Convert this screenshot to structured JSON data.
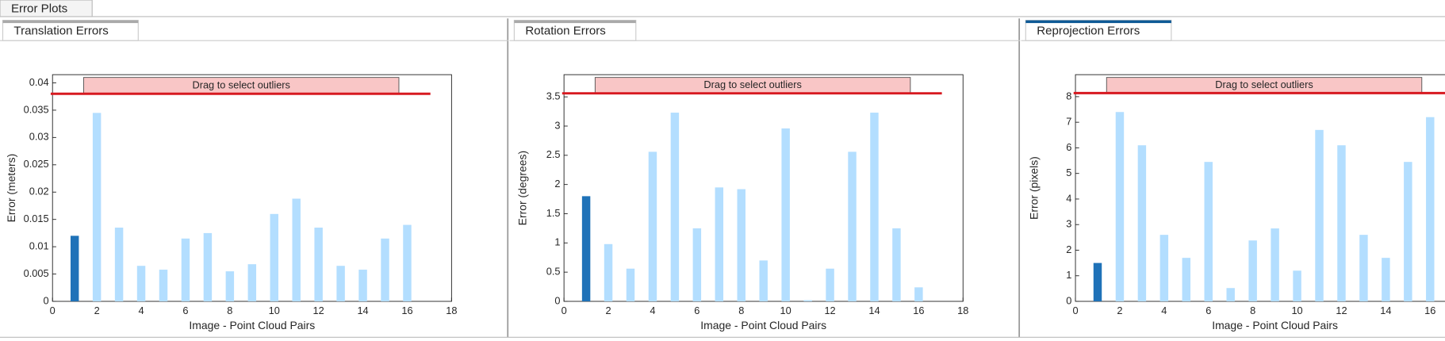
{
  "window_tab": "Error Plots",
  "chart_data": [
    {
      "type": "bar",
      "title": "Translation Errors",
      "ylabel": "Error (meters)",
      "xlabel": "Image - Point Cloud Pairs",
      "annotation": "Drag to select outliers",
      "threshold": 0.038,
      "x": [
        1,
        2,
        3,
        4,
        5,
        6,
        7,
        8,
        9,
        10,
        11,
        12,
        13,
        14,
        15,
        16
      ],
      "values": [
        0.012,
        0.0345,
        0.0135,
        0.0065,
        0.0058,
        0.0115,
        0.0125,
        0.0055,
        0.0068,
        0.016,
        0.0188,
        0.0135,
        0.0065,
        0.0058,
        0.0115,
        0.014
      ],
      "colors": [
        "#1f72b8",
        "#b3deff",
        "#b3deff",
        "#b3deff",
        "#b3deff",
        "#b3deff",
        "#b3deff",
        "#b3deff",
        "#b3deff",
        "#b3deff",
        "#b3deff",
        "#b3deff",
        "#b3deff",
        "#b3deff",
        "#b3deff",
        "#b3deff"
      ],
      "xlim": [
        0,
        18
      ],
      "xticks": [
        0,
        2,
        4,
        6,
        8,
        10,
        12,
        14,
        16,
        18
      ],
      "ylim": [
        0,
        0.0415
      ],
      "yticks": [
        0,
        0.005,
        0.01,
        0.015,
        0.02,
        0.025,
        0.03,
        0.035,
        0.04
      ]
    },
    {
      "type": "bar",
      "title": "Rotation Errors",
      "ylabel": "Error (degrees)",
      "xlabel": "Image - Point Cloud Pairs",
      "annotation": "Drag to select outliers",
      "threshold": 3.56,
      "x": [
        1,
        2,
        3,
        4,
        5,
        6,
        7,
        8,
        9,
        10,
        11,
        12,
        13,
        14,
        15,
        16
      ],
      "values": [
        1.8,
        0.98,
        0.56,
        2.56,
        3.23,
        1.25,
        1.95,
        1.92,
        0.7,
        2.96,
        0.02,
        0.56,
        2.56,
        3.23,
        1.25,
        0.24
      ],
      "colors": [
        "#1f72b8",
        "#b3deff",
        "#b3deff",
        "#b3deff",
        "#b3deff",
        "#b3deff",
        "#b3deff",
        "#b3deff",
        "#b3deff",
        "#b3deff",
        "#b3deff",
        "#b3deff",
        "#b3deff",
        "#b3deff",
        "#b3deff",
        "#b3deff"
      ],
      "xlim": [
        0,
        18
      ],
      "xticks": [
        0,
        2,
        4,
        6,
        8,
        10,
        12,
        14,
        16,
        18
      ],
      "ylim": [
        0,
        3.88
      ],
      "yticks": [
        0,
        0.5,
        1,
        1.5,
        2,
        2.5,
        3,
        3.5
      ]
    },
    {
      "type": "bar",
      "title": "Reprojection Errors",
      "ylabel": "Error (pixels)",
      "xlabel": "Image - Point Cloud Pairs",
      "annotation": "Drag to select outliers",
      "threshold": 8.14,
      "x": [
        1,
        2,
        3,
        4,
        5,
        6,
        7,
        8,
        9,
        10,
        11,
        12,
        13,
        14,
        15,
        16
      ],
      "values": [
        1.5,
        7.4,
        6.1,
        2.6,
        1.7,
        5.45,
        0.52,
        2.38,
        2.85,
        1.2,
        6.7,
        6.1,
        2.6,
        1.7,
        5.45,
        7.2
      ],
      "colors": [
        "#1f72b8",
        "#b3deff",
        "#b3deff",
        "#b3deff",
        "#b3deff",
        "#b3deff",
        "#b3deff",
        "#b3deff",
        "#b3deff",
        "#b3deff",
        "#b3deff",
        "#b3deff",
        "#b3deff",
        "#b3deff",
        "#b3deff",
        "#b3deff"
      ],
      "xlim": [
        0,
        18
      ],
      "xticks": [
        0,
        2,
        4,
        6,
        8,
        10,
        12,
        14,
        16
      ],
      "ylim": [
        0,
        8.86
      ],
      "yticks": [
        0,
        1,
        2,
        3,
        4,
        5,
        6,
        7,
        8
      ]
    }
  ]
}
